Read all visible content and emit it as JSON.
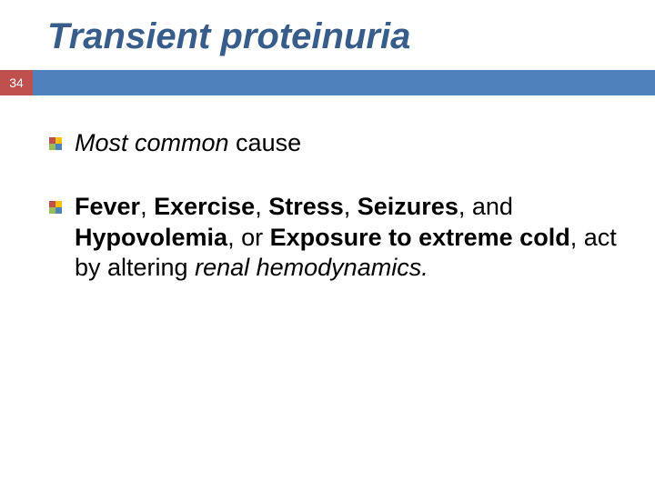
{
  "title": "Transient proteinuria",
  "page_number": "34",
  "colors": {
    "title_color": "#385d8a",
    "page_box_bg": "#c0504d",
    "bar_bg": "#4f81bd",
    "bullet_tl": "#c0504d",
    "bullet_tr": "#ffc000",
    "bullet_bl": "#9bbb59",
    "bullet_br": "#4f81bd",
    "text_color": "#000000",
    "background": "#ffffff"
  },
  "typography": {
    "title_fontsize": 40,
    "body_fontsize": 27,
    "page_num_fontsize": 14
  },
  "bullets": [
    {
      "runs": [
        {
          "text": "Most common",
          "italic": true,
          "bold": false
        },
        {
          "text": "  cause",
          "italic": false,
          "bold": false
        }
      ]
    },
    {
      "runs": [
        {
          "text": "Fever",
          "italic": false,
          "bold": true
        },
        {
          "text": ", ",
          "italic": false,
          "bold": false
        },
        {
          "text": "Exercise",
          "italic": false,
          "bold": true
        },
        {
          "text": ", ",
          "italic": false,
          "bold": false
        },
        {
          "text": "Stress",
          "italic": false,
          "bold": true
        },
        {
          "text": ", ",
          "italic": false,
          "bold": false
        },
        {
          "text": "Seizures",
          "italic": false,
          "bold": true
        },
        {
          "text": ", and ",
          "italic": false,
          "bold": false
        },
        {
          "text": "Hypovolemia",
          "italic": false,
          "bold": true
        },
        {
          "text": ", or ",
          "italic": false,
          "bold": false
        },
        {
          "text": "Exposure to extreme cold",
          "italic": false,
          "bold": true
        },
        {
          "text": ", act  by altering  ",
          "italic": false,
          "bold": false
        },
        {
          "text": "renal hemodynamics.",
          "italic": true,
          "bold": false
        }
      ]
    }
  ]
}
